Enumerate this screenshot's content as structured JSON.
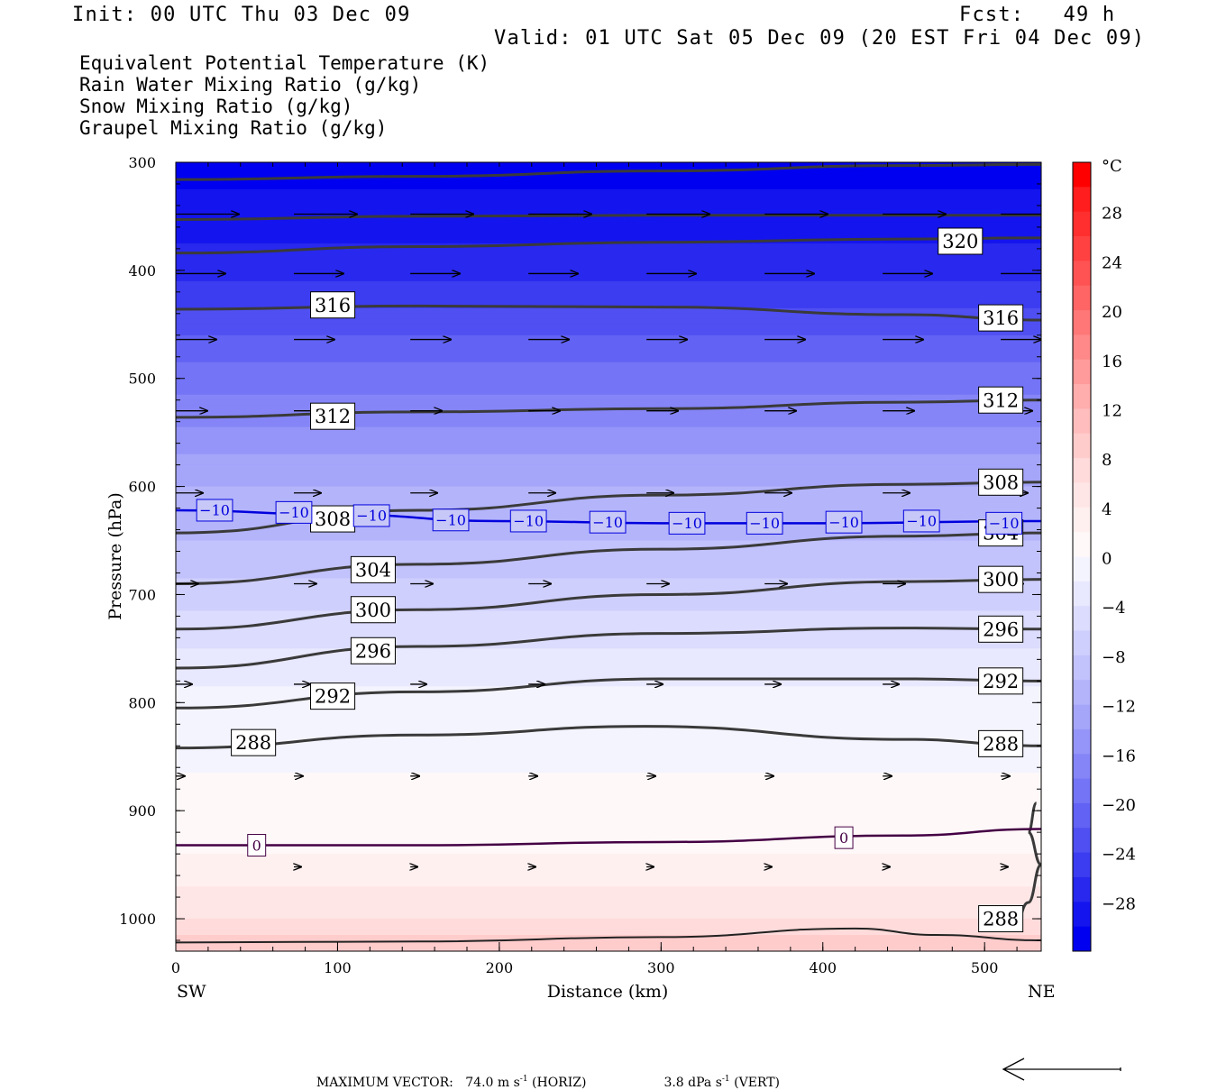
{
  "header": {
    "init": "Init: 00 UTC Thu 03 Dec 09",
    "fcst": "Fcst:   49 h",
    "valid": "Valid: 01 UTC Sat 05 Dec 09 (20 EST Fri 04 Dec 09)"
  },
  "legend": [
    {
      "text": "Equivalent Potential Temperature (K)",
      "color": "#444444"
    },
    {
      "text": "Rain Water Mixing Ratio (g/kg)",
      "color": "#007700"
    },
    {
      "text": "Snow Mixing Ratio (g/kg)",
      "color": "#ff8844"
    },
    {
      "text": "Graupel Mixing Ratio (g/kg)",
      "color": "#ee77dd"
    }
  ],
  "footer": {
    "label": "MAXIMUM VECTOR:",
    "horiz_value": "74.0 m s",
    "horiz_exp": "-1",
    "horiz_unit": " (HORIZ)",
    "vert_value": "3.8 dPa s",
    "vert_exp": "-1",
    "vert_unit": " (VERT)"
  },
  "chart_data": {
    "type": "cross-section contour",
    "xlabel": "Distance (km)",
    "ylabel": "Pressure (hPa)",
    "xlim": [
      0,
      535
    ],
    "ylim": [
      1030,
      300
    ],
    "x_ticks": [
      0,
      100,
      200,
      300,
      400,
      500
    ],
    "y_ticks": [
      300,
      400,
      500,
      600,
      700,
      800,
      900,
      1000
    ],
    "left_end_label": "SW",
    "right_end_label": "NE",
    "colorbar": {
      "unit": "°C",
      "tick_labels": [
        "28",
        "24",
        "20",
        "16",
        "12",
        "8",
        "4",
        "0",
        "−4",
        "−8",
        "−12",
        "−16",
        "−20",
        "−24",
        "−28"
      ],
      "tick_values": [
        28,
        24,
        20,
        16,
        12,
        8,
        4,
        0,
        -4,
        -8,
        -12,
        -16,
        -20,
        -24,
        -28
      ],
      "bands": [
        {
          "from": 30,
          "to": 32,
          "color": "#ff0000"
        },
        {
          "from": 28,
          "to": 30,
          "color": "#ff1d1d"
        },
        {
          "from": 26,
          "to": 28,
          "color": "#ff2f2f"
        },
        {
          "from": 24,
          "to": 26,
          "color": "#ff4141"
        },
        {
          "from": 22,
          "to": 24,
          "color": "#ff5353"
        },
        {
          "from": 20,
          "to": 22,
          "color": "#ff6565"
        },
        {
          "from": 18,
          "to": 20,
          "color": "#ff7777"
        },
        {
          "from": 16,
          "to": 18,
          "color": "#ff8989"
        },
        {
          "from": 14,
          "to": 16,
          "color": "#ff9b9b"
        },
        {
          "from": 12,
          "to": 14,
          "color": "#ffadad"
        },
        {
          "from": 10,
          "to": 12,
          "color": "#ffbdbd"
        },
        {
          "from": 8,
          "to": 10,
          "color": "#ffcccc"
        },
        {
          "from": 6,
          "to": 8,
          "color": "#ffdbdb"
        },
        {
          "from": 4,
          "to": 6,
          "color": "#ffe6e6"
        },
        {
          "from": 2,
          "to": 4,
          "color": "#fff0f0"
        },
        {
          "from": 0,
          "to": 2,
          "color": "#fff8f8"
        },
        {
          "from": -2,
          "to": 0,
          "color": "#f4f4ff"
        },
        {
          "from": -4,
          "to": -2,
          "color": "#e8e8ff"
        },
        {
          "from": -6,
          "to": -4,
          "color": "#dcdcfe"
        },
        {
          "from": -8,
          "to": -6,
          "color": "#cfcffd"
        },
        {
          "from": -10,
          "to": -8,
          "color": "#c2c2fc"
        },
        {
          "from": -12,
          "to": -10,
          "color": "#b4b4fb"
        },
        {
          "from": -14,
          "to": -12,
          "color": "#a5a5fa"
        },
        {
          "from": -16,
          "to": -14,
          "color": "#9595f9"
        },
        {
          "from": -18,
          "to": -16,
          "color": "#8585f8"
        },
        {
          "from": -20,
          "to": -18,
          "color": "#7474f6"
        },
        {
          "from": -22,
          "to": -20,
          "color": "#6262f4"
        },
        {
          "from": -24,
          "to": -22,
          "color": "#4f4ff2"
        },
        {
          "from": -26,
          "to": -24,
          "color": "#3c3cf0"
        },
        {
          "from": -28,
          "to": -26,
          "color": "#2828ee"
        },
        {
          "from": -30,
          "to": -28,
          "color": "#1414ee"
        },
        {
          "from": -32,
          "to": -30,
          "color": "#0000f0"
        }
      ]
    },
    "temperature_profile": {
      "note_levels_hpa": [
        300,
        400,
        500,
        600,
        650,
        700,
        800,
        900,
        940,
        1000,
        1025
      ],
      "temps_c": [
        -31,
        -27,
        -19,
        -12,
        -10,
        -7,
        -1,
        0.5,
        2,
        6,
        9
      ]
    },
    "theta_e_contours": [
      {
        "label": "320",
        "points": [
          [
            0,
            384
          ],
          [
            150,
            378
          ],
          [
            300,
            374
          ],
          [
            450,
            371
          ],
          [
            535,
            370
          ]
        ],
        "labels_at": [
          [
            485,
            373
          ]
        ]
      },
      {
        "label": "",
        "points": [
          [
            0,
            316
          ],
          [
            150,
            313
          ],
          [
            300,
            308
          ],
          [
            450,
            303
          ],
          [
            535,
            302
          ]
        ],
        "labels_at": []
      },
      {
        "label": "",
        "points": [
          [
            0,
            353
          ],
          [
            150,
            350
          ],
          [
            300,
            349
          ],
          [
            450,
            349
          ],
          [
            535,
            349
          ]
        ],
        "labels_at": []
      },
      {
        "label": "316",
        "points": [
          [
            0,
            436
          ],
          [
            150,
            433
          ],
          [
            300,
            434
          ],
          [
            450,
            441
          ],
          [
            535,
            446
          ]
        ],
        "labels_at": [
          [
            97,
            432
          ],
          [
            510,
            444
          ]
        ]
      },
      {
        "label": "312",
        "points": [
          [
            0,
            536
          ],
          [
            150,
            531
          ],
          [
            300,
            528
          ],
          [
            450,
            522
          ],
          [
            535,
            520
          ]
        ],
        "labels_at": [
          [
            97,
            535
          ],
          [
            510,
            520
          ]
        ]
      },
      {
        "label": "308",
        "points": [
          [
            0,
            643
          ],
          [
            150,
            622
          ],
          [
            300,
            608
          ],
          [
            450,
            598
          ],
          [
            535,
            596
          ]
        ],
        "labels_at": [
          [
            97,
            630
          ],
          [
            510,
            596
          ]
        ]
      },
      {
        "label": "304",
        "points": [
          [
            0,
            690
          ],
          [
            150,
            672
          ],
          [
            300,
            658
          ],
          [
            450,
            646
          ],
          [
            535,
            643
          ]
        ],
        "labels_at": [
          [
            122,
            677
          ],
          [
            510,
            643
          ]
        ]
      },
      {
        "label": "300",
        "points": [
          [
            0,
            732
          ],
          [
            150,
            714
          ],
          [
            300,
            700
          ],
          [
            450,
            688
          ],
          [
            535,
            686
          ]
        ],
        "labels_at": [
          [
            122,
            714
          ],
          [
            510,
            686
          ]
        ]
      },
      {
        "label": "296",
        "points": [
          [
            0,
            768
          ],
          [
            150,
            748
          ],
          [
            300,
            736
          ],
          [
            450,
            731
          ],
          [
            535,
            732
          ]
        ],
        "labels_at": [
          [
            122,
            752
          ],
          [
            510,
            732
          ]
        ]
      },
      {
        "label": "292",
        "points": [
          [
            0,
            805
          ],
          [
            150,
            790
          ],
          [
            300,
            778
          ],
          [
            450,
            778
          ],
          [
            535,
            780
          ]
        ],
        "labels_at": [
          [
            97,
            794
          ],
          [
            510,
            780
          ]
        ]
      },
      {
        "label": "288",
        "points": [
          [
            0,
            842
          ],
          [
            150,
            830
          ],
          [
            290,
            822
          ],
          [
            450,
            834
          ],
          [
            535,
            840
          ]
        ],
        "labels_at": [
          [
            48,
            837
          ],
          [
            510,
            838
          ]
        ]
      }
    ],
    "freezing_lines": [
      {
        "label": "−10",
        "color": "#0000dd",
        "points": [
          [
            0,
            622
          ],
          [
            100,
            626
          ],
          [
            200,
            632
          ],
          [
            300,
            634
          ],
          [
            400,
            634
          ],
          [
            535,
            632
          ]
        ],
        "labels_at": [
          [
            24,
            622
          ],
          [
            73,
            624
          ],
          [
            121,
            627
          ],
          [
            170,
            631
          ],
          [
            218,
            632
          ],
          [
            267,
            633
          ],
          [
            316,
            634
          ],
          [
            364,
            634
          ],
          [
            413,
            633
          ],
          [
            461,
            632
          ],
          [
            512,
            634
          ]
        ]
      },
      {
        "label": "0",
        "color": "#440044",
        "points": [
          [
            0,
            932
          ],
          [
            150,
            932
          ],
          [
            300,
            929
          ],
          [
            450,
            923
          ],
          [
            535,
            917
          ]
        ],
        "labels_at": [
          [
            50,
            932
          ],
          [
            413,
            925
          ]
        ]
      }
    ],
    "near_surface_288": {
      "label": "288",
      "points": [
        [
          532,
          893
        ],
        [
          527,
          920
        ],
        [
          535,
          950
        ],
        [
          527,
          985
        ],
        [
          518,
          1010
        ]
      ],
      "labels_at": [
        [
          510,
          1000
        ]
      ]
    },
    "surface_line": [
      [
        0,
        1022
      ],
      [
        150,
        1021
      ],
      [
        300,
        1017
      ],
      [
        420,
        1009
      ],
      [
        470,
        1015
      ],
      [
        535,
        1020
      ]
    ],
    "wind_vectors": [
      {
        "p": 348,
        "xs": [
          0,
          73,
          145,
          218,
          291,
          364,
          437,
          510
        ],
        "len": 70
      },
      {
        "p": 403,
        "xs": [
          0,
          73,
          145,
          218,
          291,
          364,
          437,
          510
        ],
        "len": 55
      },
      {
        "p": 464,
        "xs": [
          0,
          73,
          145,
          218,
          291,
          364,
          437,
          510
        ],
        "len": 45
      },
      {
        "p": 530,
        "xs": [
          0,
          73,
          145,
          218,
          291,
          364,
          437,
          510
        ],
        "len": 35
      },
      {
        "p": 606,
        "xs": [
          0,
          73,
          145,
          218,
          291,
          364,
          437,
          510
        ],
        "len": 30
      },
      {
        "p": 690,
        "xs": [
          0,
          73,
          145,
          218,
          291,
          364,
          437,
          510
        ],
        "len": 25
      },
      {
        "p": 783,
        "xs": [
          0,
          73,
          145,
          218,
          291,
          364,
          437,
          510
        ],
        "len": 18
      },
      {
        "p": 868,
        "xs": [
          0,
          73,
          145,
          218,
          291,
          364,
          437,
          510
        ],
        "len": 10
      },
      {
        "p": 952,
        "xs": [
          73,
          145,
          218,
          291,
          364,
          437,
          510
        ],
        "len": 8
      }
    ]
  }
}
